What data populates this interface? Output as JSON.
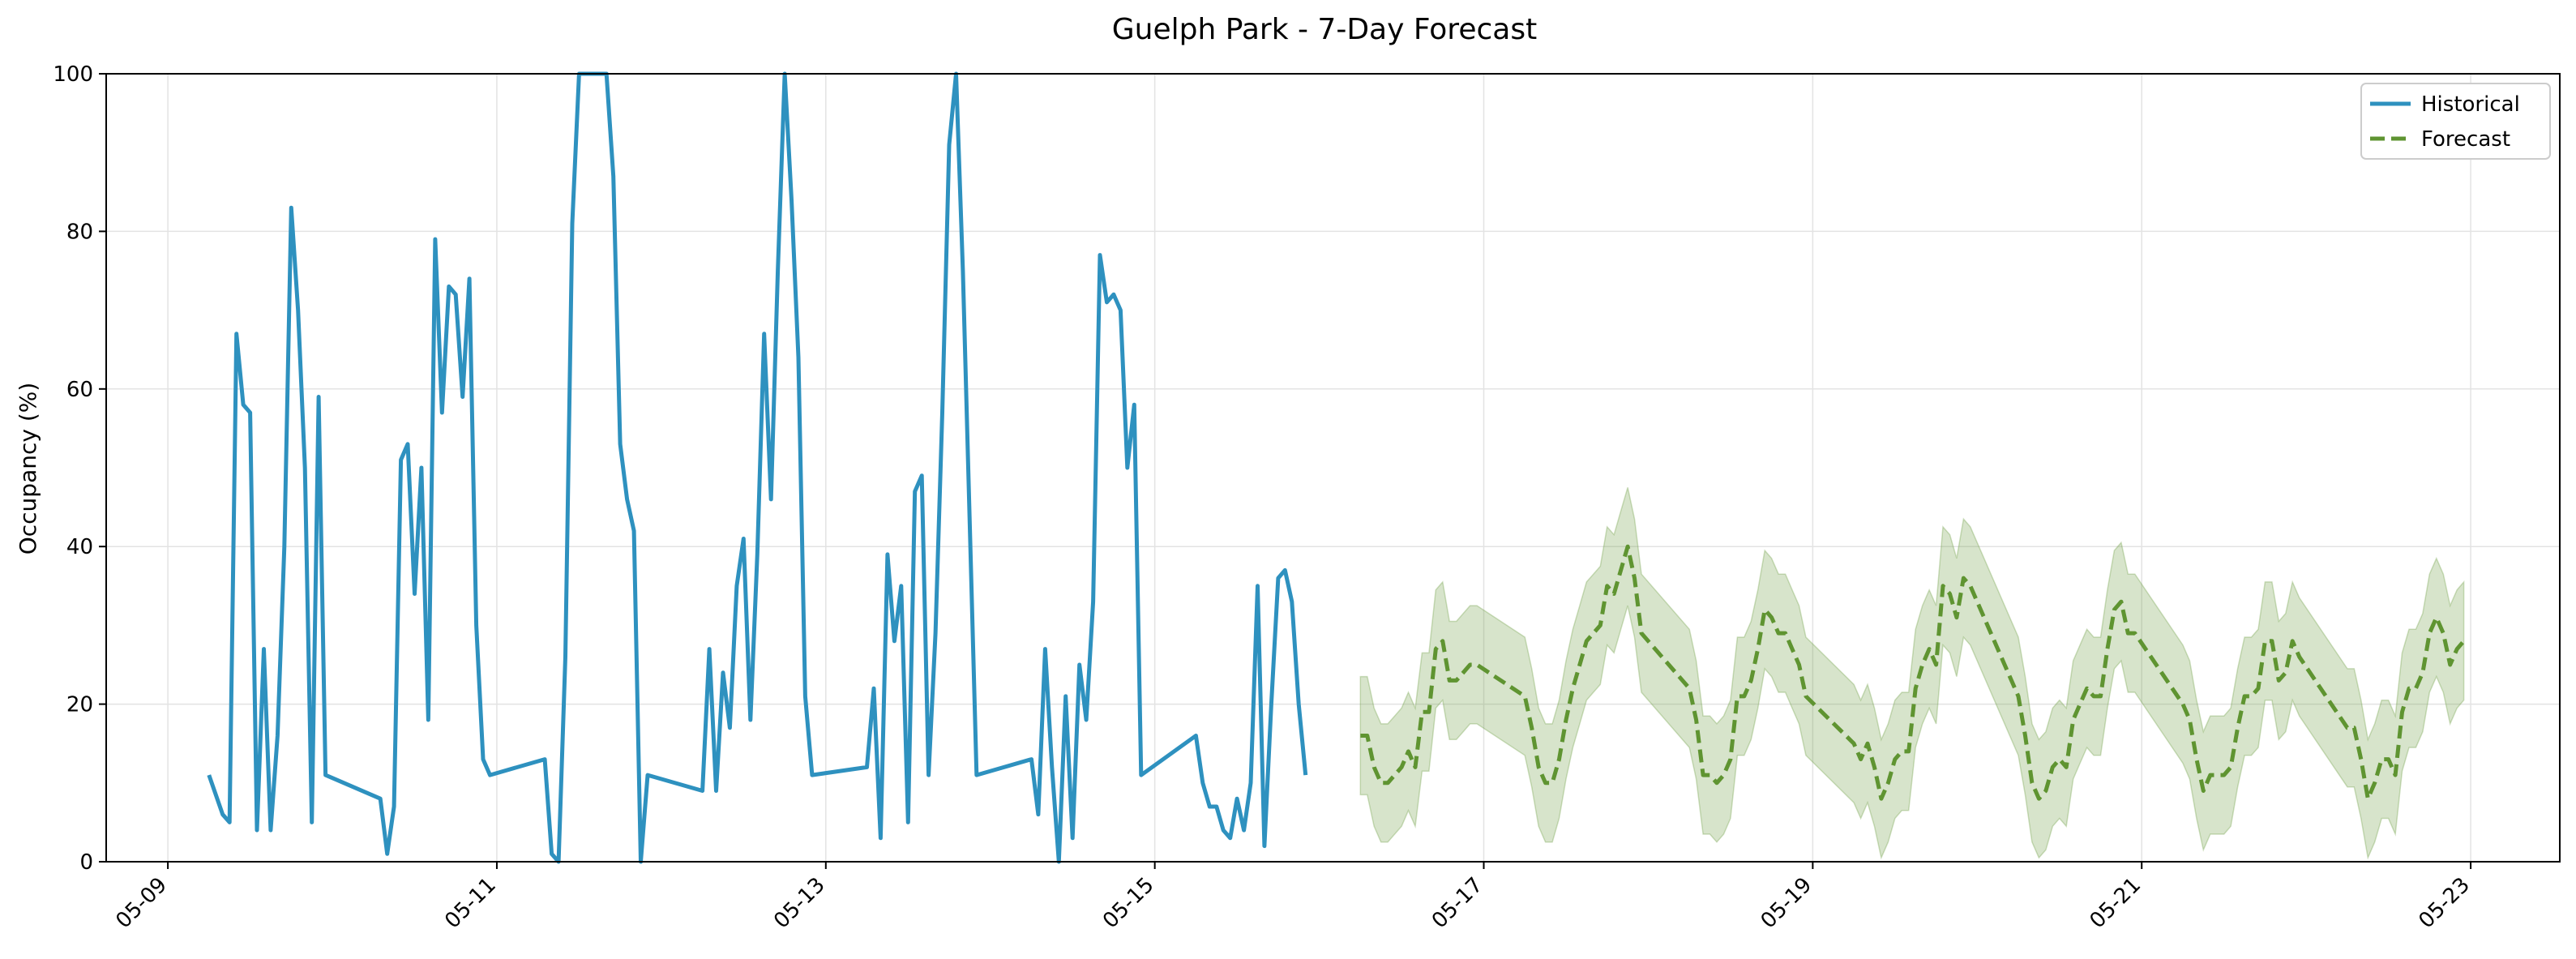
{
  "chart_data": {
    "type": "line",
    "title": "Guelph Park - 7-Day Forecast",
    "xlabel": "",
    "ylabel": "Occupancy (%)",
    "x_ticks": [
      "05-09",
      "05-11",
      "05-13",
      "05-15",
      "05-17",
      "05-19",
      "05-21",
      "05-23"
    ],
    "y_ticks": [
      0,
      20,
      40,
      60,
      80,
      100
    ],
    "xlim": [
      "05-08 15:00",
      "05-23 13:00"
    ],
    "ylim": [
      0,
      100
    ],
    "grid": true,
    "legend_position": "top-right",
    "colors": {
      "historical": "#2e91bf",
      "forecast": "#5f9431",
      "band": "#5f9431"
    },
    "series": [
      {
        "name": "Historical",
        "style": "solid",
        "points": [
          [
            "05-09 06:00",
            11
          ],
          [
            "05-09 08:00",
            6
          ],
          [
            "05-09 09:00",
            5
          ],
          [
            "05-09 10:00",
            67
          ],
          [
            "05-09 11:00",
            58
          ],
          [
            "05-09 12:00",
            57
          ],
          [
            "05-09 13:00",
            4
          ],
          [
            "05-09 14:00",
            27
          ],
          [
            "05-09 15:00",
            4
          ],
          [
            "05-09 16:00",
            16
          ],
          [
            "05-09 17:00",
            40
          ],
          [
            "05-09 18:00",
            83
          ],
          [
            "05-09 19:00",
            70
          ],
          [
            "05-09 20:00",
            50
          ],
          [
            "05-09 21:00",
            5
          ],
          [
            "05-09 22:00",
            59
          ],
          [
            "05-09 23:00",
            11
          ],
          [
            "05-10 07:00",
            8
          ],
          [
            "05-10 08:00",
            1
          ],
          [
            "05-10 09:00",
            7
          ],
          [
            "05-10 10:00",
            51
          ],
          [
            "05-10 11:00",
            53
          ],
          [
            "05-10 12:00",
            34
          ],
          [
            "05-10 13:00",
            50
          ],
          [
            "05-10 14:00",
            18
          ],
          [
            "05-10 15:00",
            79
          ],
          [
            "05-10 16:00",
            57
          ],
          [
            "05-10 17:00",
            73
          ],
          [
            "05-10 18:00",
            72
          ],
          [
            "05-10 19:00",
            59
          ],
          [
            "05-10 20:00",
            74
          ],
          [
            "05-10 21:00",
            30
          ],
          [
            "05-10 22:00",
            13
          ],
          [
            "05-10 23:00",
            11
          ],
          [
            "05-11 07:00",
            13
          ],
          [
            "05-11 08:00",
            1
          ],
          [
            "05-11 09:00",
            0
          ],
          [
            "05-11 10:00",
            26
          ],
          [
            "05-11 11:00",
            81
          ],
          [
            "05-11 12:00",
            100
          ],
          [
            "05-11 16:00",
            100
          ],
          [
            "05-11 17:00",
            87
          ],
          [
            "05-11 18:00",
            53
          ],
          [
            "05-11 19:00",
            46
          ],
          [
            "05-11 20:00",
            42
          ],
          [
            "05-11 21:00",
            0
          ],
          [
            "05-11 22:00",
            11
          ],
          [
            "05-12 06:00",
            9
          ],
          [
            "05-12 07:00",
            27
          ],
          [
            "05-12 08:00",
            9
          ],
          [
            "05-12 09:00",
            24
          ],
          [
            "05-12 10:00",
            17
          ],
          [
            "05-12 11:00",
            35
          ],
          [
            "05-12 12:00",
            41
          ],
          [
            "05-12 13:00",
            18
          ],
          [
            "05-12 14:00",
            39
          ],
          [
            "05-12 15:00",
            67
          ],
          [
            "05-12 16:00",
            46
          ],
          [
            "05-12 17:00",
            75
          ],
          [
            "05-12 18:00",
            100
          ],
          [
            "05-12 19:00",
            84
          ],
          [
            "05-12 20:00",
            64
          ],
          [
            "05-12 21:00",
            21
          ],
          [
            "05-12 22:00",
            11
          ],
          [
            "05-13 06:00",
            12
          ],
          [
            "05-13 07:00",
            22
          ],
          [
            "05-13 08:00",
            3
          ],
          [
            "05-13 09:00",
            39
          ],
          [
            "05-13 10:00",
            28
          ],
          [
            "05-13 11:00",
            35
          ],
          [
            "05-13 12:00",
            5
          ],
          [
            "05-13 13:00",
            47
          ],
          [
            "05-13 14:00",
            49
          ],
          [
            "05-13 15:00",
            11
          ],
          [
            "05-13 16:00",
            29
          ],
          [
            "05-13 17:00",
            57
          ],
          [
            "05-13 18:00",
            91
          ],
          [
            "05-13 19:00",
            100
          ],
          [
            "05-13 20:00",
            75
          ],
          [
            "05-13 22:00",
            11
          ],
          [
            "05-14 06:00",
            13
          ],
          [
            "05-14 07:00",
            6
          ],
          [
            "05-14 08:00",
            27
          ],
          [
            "05-14 09:00",
            12
          ],
          [
            "05-14 10:00",
            0
          ],
          [
            "05-14 11:00",
            21
          ],
          [
            "05-14 12:00",
            3
          ],
          [
            "05-14 13:00",
            25
          ],
          [
            "05-14 14:00",
            18
          ],
          [
            "05-14 15:00",
            33
          ],
          [
            "05-14 16:00",
            77
          ],
          [
            "05-14 17:00",
            71
          ],
          [
            "05-14 18:00",
            72
          ],
          [
            "05-14 19:00",
            70
          ],
          [
            "05-14 20:00",
            50
          ],
          [
            "05-14 21:00",
            58
          ],
          [
            "05-14 22:00",
            11
          ],
          [
            "05-15 06:00",
            16
          ],
          [
            "05-15 07:00",
            10
          ],
          [
            "05-15 08:00",
            7
          ],
          [
            "05-15 09:00",
            7
          ],
          [
            "05-15 10:00",
            4
          ],
          [
            "05-15 11:00",
            3
          ],
          [
            "05-15 12:00",
            8
          ],
          [
            "05-15 13:00",
            4
          ],
          [
            "05-15 14:00",
            10
          ],
          [
            "05-15 15:00",
            35
          ],
          [
            "05-15 16:00",
            2
          ],
          [
            "05-15 17:00",
            20
          ],
          [
            "05-15 18:00",
            36
          ],
          [
            "05-15 19:00",
            37
          ],
          [
            "05-15 20:00",
            33
          ],
          [
            "05-15 21:00",
            20
          ],
          [
            "05-15 22:00",
            11
          ]
        ]
      },
      {
        "name": "Forecast",
        "style": "dashed",
        "points": [
          [
            "05-16 06:00",
            16
          ],
          [
            "05-16 07:00",
            16
          ],
          [
            "05-16 08:00",
            12
          ],
          [
            "05-16 09:00",
            10
          ],
          [
            "05-16 10:00",
            10
          ],
          [
            "05-16 11:00",
            11
          ],
          [
            "05-16 12:00",
            12
          ],
          [
            "05-16 13:00",
            14
          ],
          [
            "05-16 14:00",
            12
          ],
          [
            "05-16 15:00",
            19
          ],
          [
            "05-16 16:00",
            19
          ],
          [
            "05-16 17:00",
            27
          ],
          [
            "05-16 18:00",
            28
          ],
          [
            "05-16 19:00",
            23
          ],
          [
            "05-16 20:00",
            23
          ],
          [
            "05-16 21:00",
            24
          ],
          [
            "05-16 22:00",
            25
          ],
          [
            "05-16 23:00",
            25
          ],
          [
            "05-17 06:00",
            21
          ],
          [
            "05-17 07:00",
            17
          ],
          [
            "05-17 08:00",
            12
          ],
          [
            "05-17 09:00",
            10
          ],
          [
            "05-17 10:00",
            10
          ],
          [
            "05-17 11:00",
            13
          ],
          [
            "05-17 12:00",
            18
          ],
          [
            "05-17 13:00",
            22
          ],
          [
            "05-17 14:00",
            25
          ],
          [
            "05-17 15:00",
            28
          ],
          [
            "05-17 16:00",
            29
          ],
          [
            "05-17 17:00",
            30
          ],
          [
            "05-17 18:00",
            35
          ],
          [
            "05-17 19:00",
            34
          ],
          [
            "05-17 20:00",
            37
          ],
          [
            "05-17 21:00",
            40
          ],
          [
            "05-17 22:00",
            36
          ],
          [
            "05-17 23:00",
            29
          ],
          [
            "05-18 06:00",
            22
          ],
          [
            "05-18 07:00",
            18
          ],
          [
            "05-18 08:00",
            11
          ],
          [
            "05-18 09:00",
            11
          ],
          [
            "05-18 10:00",
            10
          ],
          [
            "05-18 11:00",
            11
          ],
          [
            "05-18 12:00",
            13
          ],
          [
            "05-18 13:00",
            21
          ],
          [
            "05-18 14:00",
            21
          ],
          [
            "05-18 15:00",
            23
          ],
          [
            "05-18 16:00",
            27
          ],
          [
            "05-18 17:00",
            32
          ],
          [
            "05-18 18:00",
            31
          ],
          [
            "05-18 19:00",
            29
          ],
          [
            "05-18 20:00",
            29
          ],
          [
            "05-18 21:00",
            27
          ],
          [
            "05-18 22:00",
            25
          ],
          [
            "05-18 23:00",
            21
          ],
          [
            "05-19 06:00",
            15
          ],
          [
            "05-19 07:00",
            13
          ],
          [
            "05-19 08:00",
            15
          ],
          [
            "05-19 09:00",
            12
          ],
          [
            "05-19 10:00",
            8
          ],
          [
            "05-19 11:00",
            10
          ],
          [
            "05-19 12:00",
            13
          ],
          [
            "05-19 13:00",
            14
          ],
          [
            "05-19 14:00",
            14
          ],
          [
            "05-19 15:00",
            22
          ],
          [
            "05-19 16:00",
            25
          ],
          [
            "05-19 17:00",
            27
          ],
          [
            "05-19 18:00",
            25
          ],
          [
            "05-19 19:00",
            35
          ],
          [
            "05-19 20:00",
            34
          ],
          [
            "05-19 21:00",
            31
          ],
          [
            "05-19 22:00",
            36
          ],
          [
            "05-19 23:00",
            35
          ],
          [
            "05-20 06:00",
            21
          ],
          [
            "05-20 07:00",
            16
          ],
          [
            "05-20 08:00",
            10
          ],
          [
            "05-20 09:00",
            8
          ],
          [
            "05-20 10:00",
            9
          ],
          [
            "05-20 11:00",
            12
          ],
          [
            "05-20 12:00",
            13
          ],
          [
            "05-20 13:00",
            12
          ],
          [
            "05-20 14:00",
            18
          ],
          [
            "05-20 15:00",
            20
          ],
          [
            "05-20 16:00",
            22
          ],
          [
            "05-20 17:00",
            21
          ],
          [
            "05-20 18:00",
            21
          ],
          [
            "05-20 19:00",
            27
          ],
          [
            "05-20 20:00",
            32
          ],
          [
            "05-20 21:00",
            33
          ],
          [
            "05-20 22:00",
            29
          ],
          [
            "05-20 23:00",
            29
          ],
          [
            "05-21 06:00",
            20
          ],
          [
            "05-21 07:00",
            18
          ],
          [
            "05-21 08:00",
            13
          ],
          [
            "05-21 09:00",
            9
          ],
          [
            "05-21 10:00",
            11
          ],
          [
            "05-21 11:00",
            11
          ],
          [
            "05-21 12:00",
            11
          ],
          [
            "05-21 13:00",
            12
          ],
          [
            "05-21 14:00",
            17
          ],
          [
            "05-21 15:00",
            21
          ],
          [
            "05-21 16:00",
            21
          ],
          [
            "05-21 17:00",
            22
          ],
          [
            "05-21 18:00",
            28
          ],
          [
            "05-21 19:00",
            28
          ],
          [
            "05-21 20:00",
            23
          ],
          [
            "05-21 21:00",
            24
          ],
          [
            "05-21 22:00",
            28
          ],
          [
            "05-21 23:00",
            26
          ],
          [
            "05-22 06:00",
            17
          ],
          [
            "05-22 07:00",
            17
          ],
          [
            "05-22 08:00",
            13
          ],
          [
            "05-22 09:00",
            8
          ],
          [
            "05-22 10:00",
            10
          ],
          [
            "05-22 11:00",
            13
          ],
          [
            "05-22 12:00",
            13
          ],
          [
            "05-22 13:00",
            11
          ],
          [
            "05-22 14:00",
            19
          ],
          [
            "05-22 15:00",
            22
          ],
          [
            "05-22 16:00",
            22
          ],
          [
            "05-22 17:00",
            24
          ],
          [
            "05-22 18:00",
            29
          ],
          [
            "05-22 19:00",
            31
          ],
          [
            "05-22 20:00",
            29
          ],
          [
            "05-22 21:00",
            25
          ],
          [
            "05-22 22:00",
            27
          ],
          [
            "05-22 23:00",
            28
          ]
        ],
        "band_halfwidth": 7.5
      }
    ]
  }
}
